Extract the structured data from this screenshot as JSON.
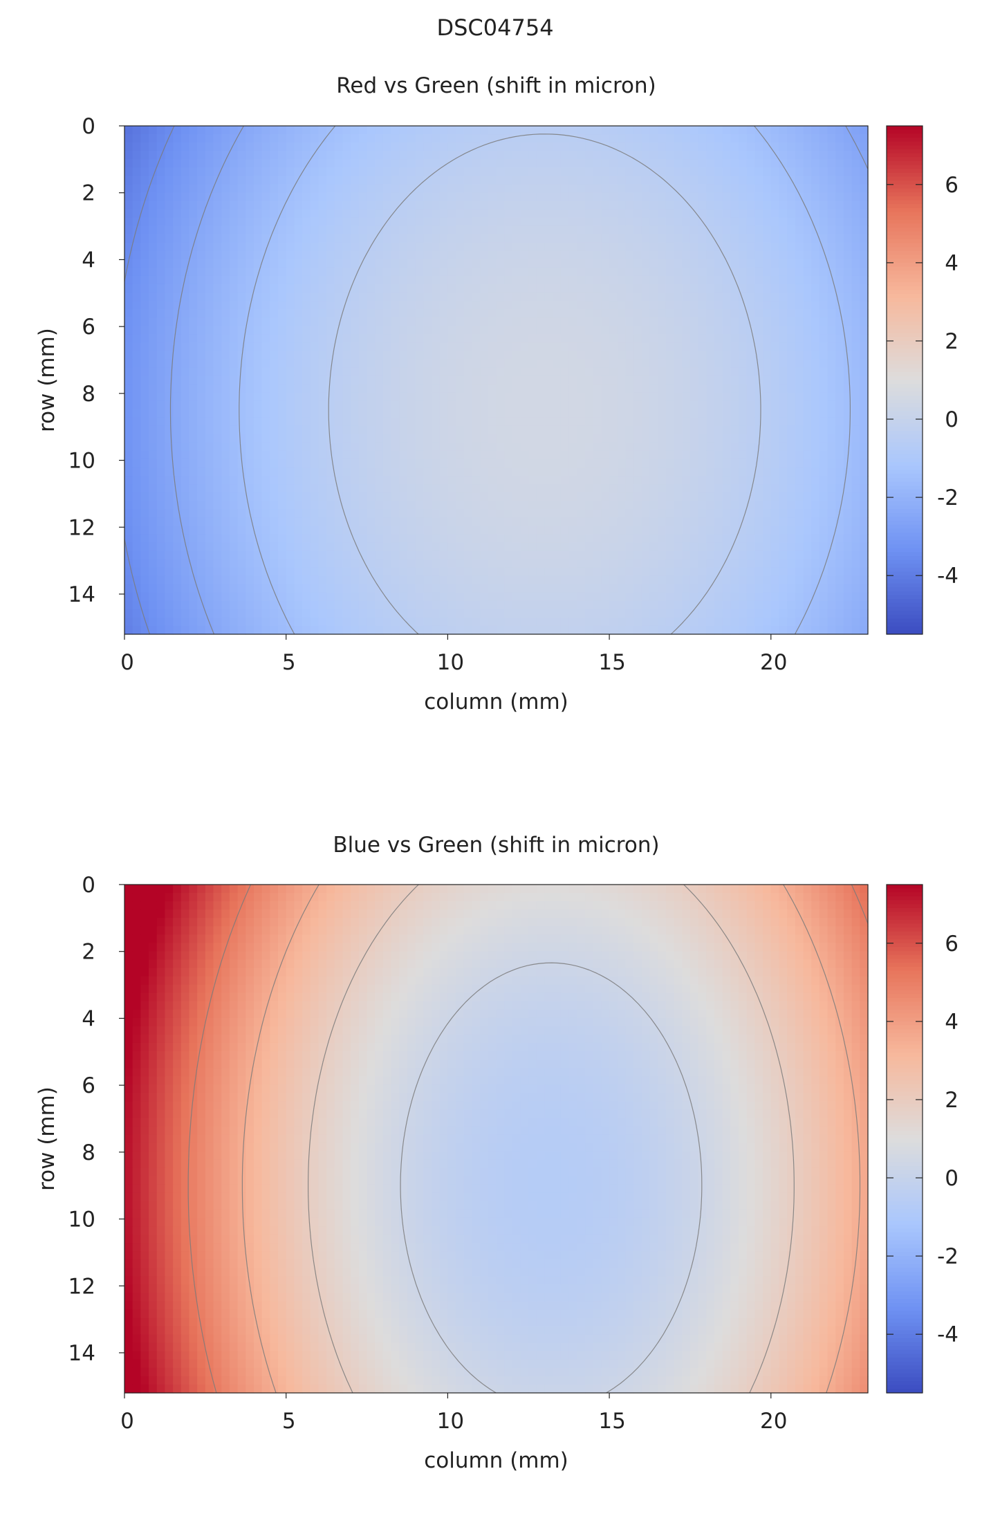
{
  "figure_title": "DSC04754",
  "colormap": {
    "name": "coolwarm",
    "stops": [
      "#3b4cc0",
      "#6f92f3",
      "#aac7fd",
      "#dddcdc",
      "#f7b89c",
      "#e7745b",
      "#b40426"
    ],
    "vmin": -5.5,
    "vmax": 7.5
  },
  "contour_color": "#7a7a7a",
  "chart_data": [
    {
      "type": "heatmap",
      "title": "Red vs Green (shift in micron)",
      "xlabel": "column (mm)",
      "ylabel": "row (mm)",
      "xlim": [
        0,
        23
      ],
      "ylim": [
        0,
        15.2
      ],
      "y_inverted": true,
      "x_ticks": [
        "0",
        "5",
        "10",
        "15",
        "20"
      ],
      "y_ticks": [
        "0",
        "2",
        "4",
        "6",
        "8",
        "10",
        "12",
        "14"
      ],
      "colorbar_ticks": [
        "6",
        "4",
        "2",
        "0",
        "-2",
        "-4"
      ],
      "colorbar_range": [
        -5.5,
        7.5
      ],
      "field": {
        "center": [
          13,
          8.5
        ],
        "center_value": 0.5,
        "radial_coeff": 0.0203,
        "x_weight": 1.05,
        "y_weight": 0.85,
        "left_edge_value": -4.6,
        "right_edge_value": -3.4
      },
      "contour_levels": [
        -0.5,
        -1.5,
        -2.5,
        -3.5,
        -4.5
      ]
    },
    {
      "type": "heatmap",
      "title": "Blue vs Green (shift in micron)",
      "xlabel": "column (mm)",
      "ylabel": "row (mm)",
      "xlim": [
        0,
        23
      ],
      "ylim": [
        0,
        15.2
      ],
      "y_inverted": true,
      "x_ticks": [
        "0",
        "5",
        "10",
        "15",
        "20"
      ],
      "y_ticks": [
        "0",
        "2",
        "4",
        "6",
        "8",
        "10",
        "12",
        "14"
      ],
      "colorbar_ticks": [
        "6",
        "4",
        "2",
        "0",
        "-2",
        "-4"
      ],
      "colorbar_range": [
        -5.5,
        7.5
      ],
      "field": {
        "center": [
          13.2,
          9
        ],
        "center_value": -0.7,
        "radial_coeff": 0.046,
        "x_weight": 1.0,
        "y_weight": 0.7,
        "left_edge_value": 7.6,
        "right_edge_value": 5.6
      },
      "contour_levels": [
        0.3,
        1.9,
        3.5,
        5.1
      ]
    }
  ]
}
